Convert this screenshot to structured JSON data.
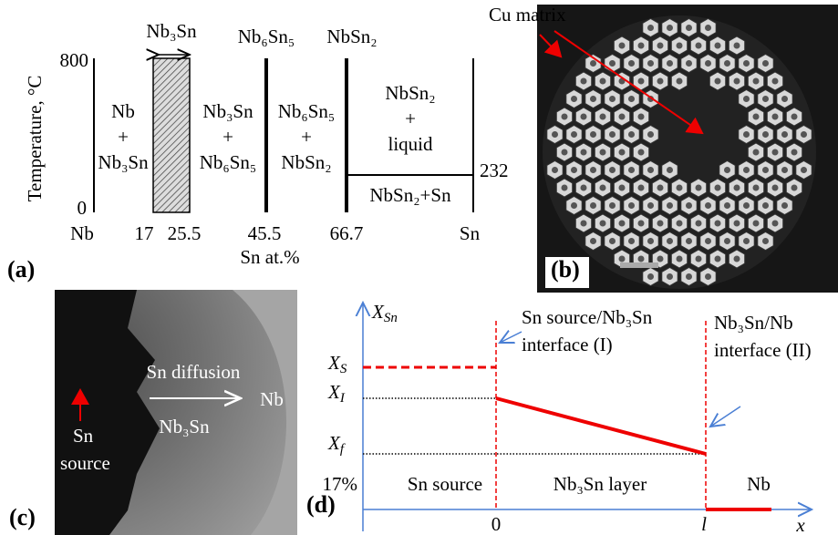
{
  "panel_a": {
    "label": "(a)",
    "top_phases": [
      "Nb₃Sn",
      "Nb₆Sn₅",
      "NbSn₂"
    ],
    "y_axis_label": "Temperature, °C",
    "y_ticks": [
      "800",
      "0"
    ],
    "x_ticks": [
      "Nb",
      "17",
      "25.5",
      "45.5",
      "66.7",
      "Sn"
    ],
    "x_axis_label": "Sn at.%",
    "regions": [
      [
        "Nb",
        "+",
        "Nb₃Sn"
      ],
      [
        "Nb₃Sn",
        "+",
        "Nb₆Sn₅"
      ],
      [
        "Nb₆Sn₅",
        "+",
        "NbSn₂"
      ],
      [
        "NbSn₂",
        "+",
        "liquid"
      ],
      [
        "NbSn₂+Sn"
      ]
    ],
    "eutectic_temperature": "232"
  },
  "panel_b": {
    "label": "(b)",
    "annotation": "Cu matrix"
  },
  "panel_c": {
    "label": "(c)",
    "annotations": {
      "diffusion": "Sn diffusion",
      "nb": "Nb",
      "layer": "Nb₃Sn",
      "source": [
        "Sn",
        "source"
      ]
    }
  },
  "panel_d": {
    "label": "(d)",
    "y_axis_label": {
      "symbol": "X",
      "subscript": "Sn"
    },
    "y_ticks": [
      {
        "symbol": "X",
        "subscript": "S"
      },
      {
        "symbol": "X",
        "subscript": "I"
      },
      {
        "symbol": "X",
        "subscript": "f"
      },
      "17%"
    ],
    "x_ticks": [
      "0",
      "l"
    ],
    "x_axis_label": "x",
    "interfaces": [
      [
        "Sn source/Nb₃Sn",
        "interface (I)"
      ],
      [
        "Nb₃Sn/Nb",
        "interface (II)"
      ]
    ],
    "regions": [
      "Sn source",
      "Nb₃Sn layer",
      "Nb"
    ]
  }
}
